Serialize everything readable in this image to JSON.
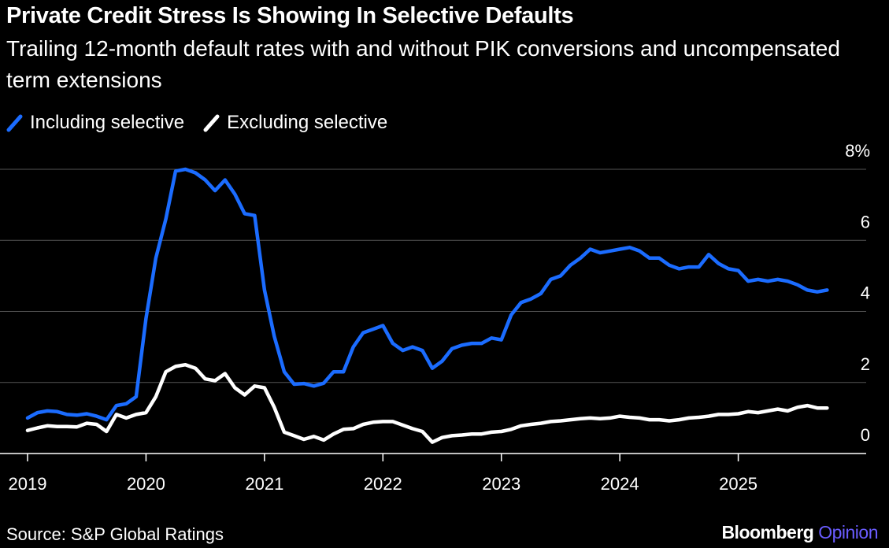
{
  "title": "Private Credit Stress Is Showing In Selective Defaults",
  "subtitle": "Trailing 12-month default rates with and without PIK conversions and uncompensated term extensions",
  "source": "Source: S&P Global Ratings",
  "brand": {
    "name": "Bloomberg",
    "suffix": "Opinion"
  },
  "colors": {
    "including": "#1b6cff",
    "excluding": "#ffffff",
    "grid": "#555555",
    "axis": "#ffffff",
    "brand_accent": "#6a5cff",
    "background": "#000000"
  },
  "chart_data": {
    "type": "line",
    "title": "Private Credit Stress Is Showing In Selective Defaults",
    "subtitle": "Trailing 12-month default rates with and without PIK conversions and uncompensated term extensions",
    "x_ticks": [
      "2019",
      "2020",
      "2021",
      "2022",
      "2023",
      "2024",
      "2025"
    ],
    "x_range": [
      2019.0,
      2026.0
    ],
    "y_ticks": [
      {
        "value": 0,
        "label": "0"
      },
      {
        "value": 2,
        "label": "2"
      },
      {
        "value": 4,
        "label": "4"
      },
      {
        "value": 6,
        "label": "6"
      },
      {
        "value": 8,
        "label": "8%"
      }
    ],
    "ylim": [
      0,
      8
    ],
    "y_axis_side": "right",
    "grid": true,
    "legend_position": "top-left",
    "series": [
      {
        "name": "Including selective",
        "color": "#1b6cff",
        "x": [
          2019.0,
          2019.083,
          2019.167,
          2019.25,
          2019.333,
          2019.417,
          2019.5,
          2019.583,
          2019.667,
          2019.75,
          2019.833,
          2019.917,
          2020.0,
          2020.083,
          2020.167,
          2020.25,
          2020.333,
          2020.417,
          2020.5,
          2020.583,
          2020.667,
          2020.75,
          2020.833,
          2020.917,
          2021.0,
          2021.083,
          2021.167,
          2021.25,
          2021.333,
          2021.417,
          2021.5,
          2021.583,
          2021.667,
          2021.75,
          2021.833,
          2021.917,
          2022.0,
          2022.083,
          2022.167,
          2022.25,
          2022.333,
          2022.417,
          2022.5,
          2022.583,
          2022.667,
          2022.75,
          2022.833,
          2022.917,
          2023.0,
          2023.083,
          2023.167,
          2023.25,
          2023.333,
          2023.417,
          2023.5,
          2023.583,
          2023.667,
          2023.75,
          2023.833,
          2023.917,
          2024.0,
          2024.083,
          2024.167,
          2024.25,
          2024.333,
          2024.417,
          2024.5,
          2024.583,
          2024.667,
          2024.75,
          2024.833,
          2024.917,
          2025.0,
          2025.083,
          2025.167,
          2025.25,
          2025.333,
          2025.417,
          2025.5,
          2025.583,
          2025.667,
          2025.75
        ],
        "values": [
          1.0,
          1.15,
          1.2,
          1.18,
          1.1,
          1.08,
          1.12,
          1.05,
          0.95,
          1.35,
          1.4,
          1.6,
          3.8,
          5.5,
          6.6,
          7.95,
          8.0,
          7.9,
          7.7,
          7.4,
          7.7,
          7.3,
          6.75,
          6.7,
          4.6,
          3.3,
          2.3,
          1.95,
          1.97,
          1.9,
          1.98,
          2.3,
          2.3,
          3.0,
          3.4,
          3.5,
          3.6,
          3.1,
          2.9,
          3.0,
          2.9,
          2.4,
          2.6,
          2.95,
          3.05,
          3.1,
          3.1,
          3.25,
          3.2,
          3.9,
          4.25,
          4.35,
          4.5,
          4.9,
          5.0,
          5.3,
          5.5,
          5.75,
          5.65,
          5.7,
          5.75,
          5.8,
          5.7,
          5.5,
          5.5,
          5.3,
          5.2,
          5.25,
          5.25,
          5.6,
          5.35,
          5.2,
          5.15,
          4.85,
          4.9,
          4.85,
          4.9,
          4.85,
          4.75,
          4.6,
          4.55,
          4.6
        ]
      },
      {
        "name": "Excluding selective",
        "color": "#ffffff",
        "x": [
          2019.0,
          2019.083,
          2019.167,
          2019.25,
          2019.333,
          2019.417,
          2019.5,
          2019.583,
          2019.667,
          2019.75,
          2019.833,
          2019.917,
          2020.0,
          2020.083,
          2020.167,
          2020.25,
          2020.333,
          2020.417,
          2020.5,
          2020.583,
          2020.667,
          2020.75,
          2020.833,
          2020.917,
          2021.0,
          2021.083,
          2021.167,
          2021.25,
          2021.333,
          2021.417,
          2021.5,
          2021.583,
          2021.667,
          2021.75,
          2021.833,
          2021.917,
          2022.0,
          2022.083,
          2022.167,
          2022.25,
          2022.333,
          2022.417,
          2022.5,
          2022.583,
          2022.667,
          2022.75,
          2022.833,
          2022.917,
          2023.0,
          2023.083,
          2023.167,
          2023.25,
          2023.333,
          2023.417,
          2023.5,
          2023.583,
          2023.667,
          2023.75,
          2023.833,
          2023.917,
          2024.0,
          2024.083,
          2024.167,
          2024.25,
          2024.333,
          2024.417,
          2024.5,
          2024.583,
          2024.667,
          2024.75,
          2024.833,
          2024.917,
          2025.0,
          2025.083,
          2025.167,
          2025.25,
          2025.333,
          2025.417,
          2025.5,
          2025.583,
          2025.667,
          2025.75
        ],
        "values": [
          0.65,
          0.72,
          0.78,
          0.76,
          0.76,
          0.75,
          0.85,
          0.82,
          0.62,
          1.1,
          1.0,
          1.1,
          1.15,
          1.6,
          2.3,
          2.45,
          2.5,
          2.4,
          2.1,
          2.05,
          2.25,
          1.85,
          1.65,
          1.9,
          1.85,
          1.3,
          0.6,
          0.5,
          0.4,
          0.48,
          0.38,
          0.55,
          0.68,
          0.7,
          0.82,
          0.88,
          0.9,
          0.9,
          0.8,
          0.7,
          0.62,
          0.32,
          0.45,
          0.5,
          0.52,
          0.55,
          0.55,
          0.6,
          0.62,
          0.68,
          0.78,
          0.82,
          0.85,
          0.9,
          0.92,
          0.95,
          0.98,
          1.0,
          0.98,
          1.0,
          1.05,
          1.02,
          1.0,
          0.95,
          0.95,
          0.92,
          0.95,
          1.0,
          1.02,
          1.05,
          1.1,
          1.1,
          1.12,
          1.18,
          1.15,
          1.2,
          1.25,
          1.2,
          1.3,
          1.35,
          1.28,
          1.28
        ]
      }
    ]
  }
}
